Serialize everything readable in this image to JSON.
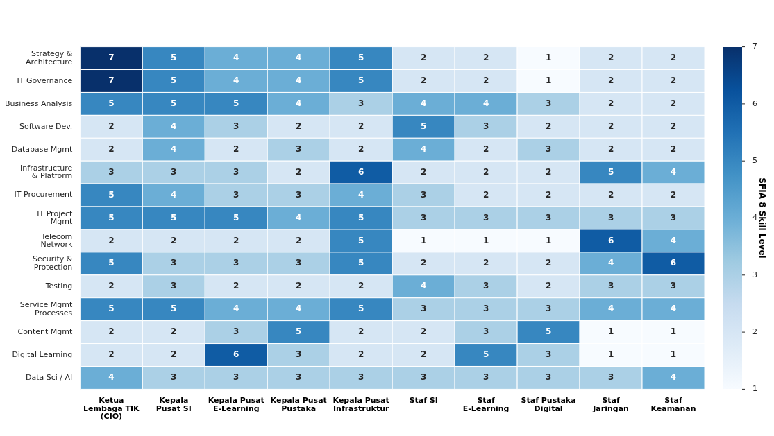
{
  "chart_data": {
    "type": "heatmap",
    "clabel": "SFIA 8 Skill Level",
    "clim": [
      1,
      7
    ],
    "cticks": [
      1,
      2,
      3,
      4,
      5,
      6,
      7
    ],
    "data_labels": true,
    "categories": [
      "Ketua\nLembaga TIK\n(CIO)",
      "Kepala\nPusat SI",
      "Kepala Pusat\nE-Learning",
      "Kepala Pusat\nPustaka",
      "Kepala Pusat\nInfrastruktur",
      "Staf SI",
      "Staf\nE-Learning",
      "Staf Pustaka\nDigital",
      "Staf\nJaringan",
      "Staf\nKeamanan"
    ],
    "y_categories": [
      "Strategy &\nArchitecture",
      "IT Governance",
      "Business Analysis",
      "Software Dev.",
      "Database Mgmt",
      "Infrastructure\n& Platform",
      "IT Procurement",
      "IT Project\nMgmt",
      "Telecom\nNetwork",
      "Security &\nProtection",
      "Testing",
      "Service Mgmt\nProcesses",
      "Content Mgmt",
      "Digital Learning",
      "Data Sci / AI"
    ],
    "cells": [
      [
        7,
        5,
        4,
        4,
        5,
        2,
        2,
        1,
        2,
        2
      ],
      [
        7,
        5,
        4,
        4,
        5,
        2,
        2,
        1,
        2,
        2
      ],
      [
        5,
        5,
        5,
        4,
        3,
        4,
        4,
        3,
        2,
        2
      ],
      [
        2,
        4,
        3,
        2,
        2,
        5,
        3,
        2,
        2,
        2
      ],
      [
        2,
        4,
        2,
        3,
        2,
        4,
        2,
        3,
        2,
        2
      ],
      [
        3,
        3,
        3,
        2,
        6,
        2,
        2,
        2,
        5,
        4
      ],
      [
        5,
        4,
        3,
        3,
        4,
        3,
        2,
        2,
        2,
        2
      ],
      [
        5,
        5,
        5,
        4,
        5,
        3,
        3,
        3,
        3,
        3
      ],
      [
        2,
        2,
        2,
        2,
        5,
        1,
        1,
        1,
        6,
        4
      ],
      [
        5,
        3,
        3,
        3,
        5,
        2,
        2,
        2,
        4,
        6
      ],
      [
        2,
        3,
        2,
        2,
        2,
        4,
        3,
        2,
        3,
        3
      ],
      [
        5,
        5,
        4,
        4,
        5,
        3,
        3,
        3,
        4,
        4
      ],
      [
        2,
        2,
        3,
        5,
        2,
        2,
        3,
        5,
        1,
        1
      ],
      [
        2,
        2,
        6,
        3,
        2,
        2,
        5,
        3,
        1,
        1
      ],
      [
        4,
        3,
        3,
        3,
        3,
        3,
        3,
        3,
        3,
        4
      ]
    ]
  }
}
